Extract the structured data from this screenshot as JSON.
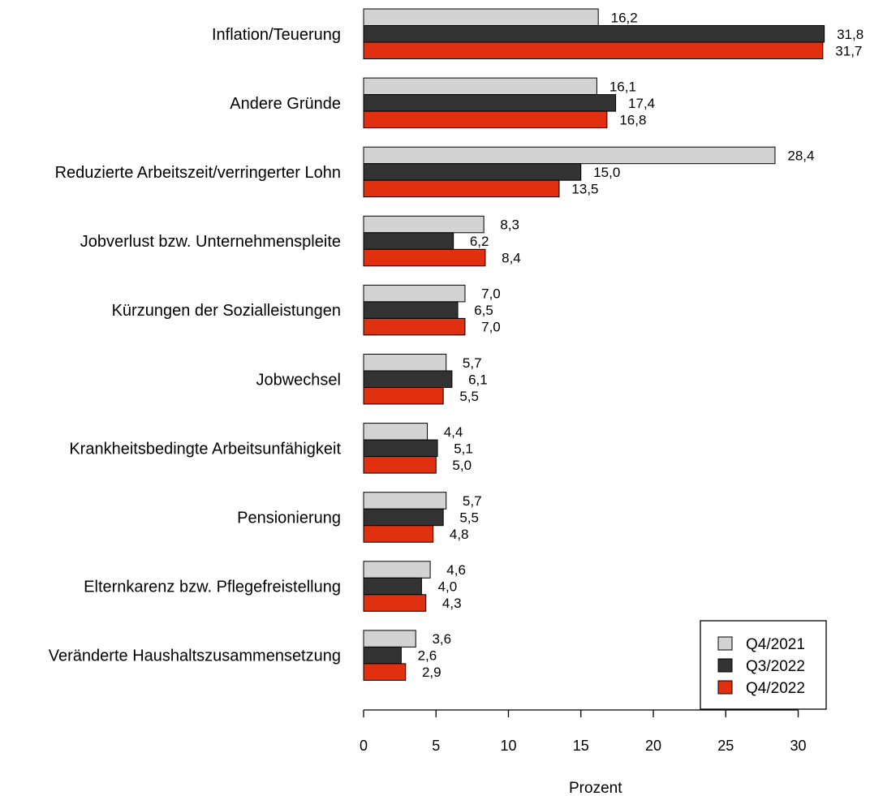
{
  "chart_data": {
    "type": "bar",
    "orientation": "horizontal",
    "categories": [
      "Inflation/Teuerung",
      "Andere Gründe",
      "Reduzierte Arbeitszeit/verringerter Lohn",
      "Jobverlust bzw. Unternehmenspleite",
      "Kürzungen der Sozialleistungen",
      "Jobwechsel",
      "Krankheitsbedingte Arbeitsunfähigkeit",
      "Pensionierung",
      "Elternkarenz bzw. Pflegefreistellung",
      "Veränderte Haushaltszusammensetzung"
    ],
    "series": [
      {
        "name": "Q4/2021",
        "color": "#d3d3d3",
        "values": [
          16.2,
          16.1,
          28.4,
          8.3,
          7.0,
          5.7,
          4.4,
          5.7,
          4.6,
          3.6
        ],
        "labels": [
          "16,2",
          "16,1",
          "28,4",
          "8,3",
          "7,0",
          "5,7",
          "4,4",
          "5,7",
          "4,6",
          "3,6"
        ]
      },
      {
        "name": "Q3/2022",
        "color": "#333333",
        "values": [
          31.8,
          17.4,
          15.0,
          6.2,
          6.5,
          6.1,
          5.1,
          5.5,
          4.0,
          2.6
        ],
        "labels": [
          "31,8",
          "17,4",
          "15,0",
          "6,2",
          "6,5",
          "6,1",
          "5,1",
          "5,5",
          "4,0",
          "2,6"
        ]
      },
      {
        "name": "Q4/2022",
        "color": "#e03010",
        "values": [
          31.7,
          16.8,
          13.5,
          8.4,
          7.0,
          5.5,
          5.0,
          4.8,
          4.3,
          2.9
        ],
        "labels": [
          "31,7",
          "16,8",
          "13,5",
          "8,4",
          "7,0",
          "5,5",
          "5,0",
          "4,8",
          "4,3",
          "2,9"
        ]
      }
    ],
    "xlabel": "Prozent",
    "ylabel": "",
    "xlim": [
      0,
      32
    ],
    "xticks": [
      0,
      5,
      10,
      15,
      20,
      25,
      30
    ],
    "grid": false,
    "legend_position": "bottom-right"
  }
}
